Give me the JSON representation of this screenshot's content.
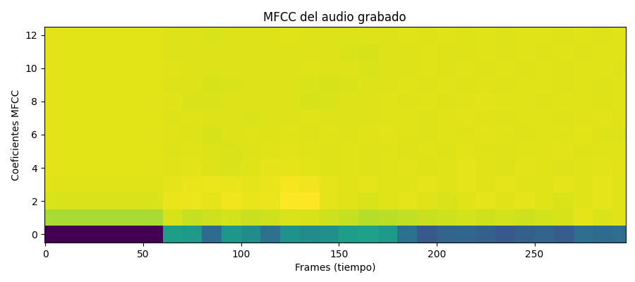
{
  "chart_data": {
    "type": "heatmap",
    "title": "MFCC del audio grabado",
    "x_label": "Frames (tiempo)",
    "y_label": "Coeficientes MFCC",
    "x_edges": [
      -0.5,
      10,
      20,
      30,
      40,
      50,
      60,
      70,
      80,
      90,
      100,
      110,
      120,
      130,
      140,
      150,
      160,
      170,
      180,
      190,
      200,
      210,
      220,
      230,
      240,
      250,
      260,
      270,
      280,
      290,
      296.5
    ],
    "y": [
      0,
      1,
      2,
      3,
      4,
      5,
      6,
      7,
      8,
      9,
      10,
      11,
      12
    ],
    "cells": [
      [
        -650,
        -650,
        -650,
        -650,
        -650,
        -650,
        -250,
        -260,
        -400,
        -270,
        -300,
        -380,
        -280,
        -300,
        -290,
        -250,
        -240,
        -260,
        -380,
        -450,
        -420,
        -410,
        -430,
        -450,
        -430,
        -420,
        -440,
        -390,
        -400,
        -390
      ],
      [
        -20,
        -20,
        -20,
        -20,
        -20,
        -20,
        30,
        10,
        20,
        25,
        15,
        20,
        35,
        30,
        20,
        10,
        -5,
        0,
        5,
        15,
        20,
        25,
        20,
        25,
        20,
        25,
        30,
        45,
        35,
        40
      ],
      [
        35,
        35,
        35,
        35,
        35,
        35,
        50,
        55,
        45,
        60,
        50,
        55,
        70,
        75,
        45,
        40,
        35,
        40,
        45,
        40,
        35,
        40,
        45,
        40,
        45,
        40,
        35,
        40,
        45,
        40
      ],
      [
        40,
        40,
        40,
        40,
        40,
        40,
        45,
        50,
        55,
        50,
        45,
        50,
        65,
        60,
        45,
        40,
        45,
        40,
        40,
        45,
        40,
        45,
        40,
        45,
        40,
        40,
        45,
        40,
        45,
        40
      ],
      [
        42,
        42,
        42,
        42,
        42,
        42,
        40,
        42,
        38,
        35,
        40,
        44,
        45,
        42,
        38,
        40,
        36,
        40,
        42,
        38,
        40,
        44,
        40,
        38,
        42,
        40,
        38,
        40,
        42,
        40
      ],
      [
        42,
        42,
        42,
        42,
        42,
        42,
        38,
        40,
        36,
        34,
        38,
        40,
        42,
        40,
        38,
        40,
        38,
        40,
        36,
        40,
        38,
        42,
        40,
        38,
        40,
        40,
        42,
        38,
        40,
        40
      ],
      [
        42,
        42,
        42,
        42,
        42,
        42,
        40,
        38,
        30,
        36,
        40,
        38,
        40,
        36,
        40,
        38,
        40,
        42,
        40,
        38,
        40,
        40,
        42,
        40,
        38,
        40,
        40,
        42,
        38,
        36
      ],
      [
        42,
        42,
        42,
        42,
        42,
        42,
        38,
        40,
        36,
        38,
        34,
        36,
        38,
        40,
        38,
        36,
        38,
        40,
        40,
        38,
        40,
        42,
        40,
        38,
        40,
        40,
        38,
        40,
        42,
        40
      ],
      [
        42,
        42,
        42,
        42,
        42,
        42,
        40,
        35,
        34,
        36,
        38,
        36,
        38,
        32,
        34,
        36,
        38,
        40,
        38,
        40,
        38,
        40,
        42,
        40,
        40,
        38,
        40,
        40,
        38,
        40
      ],
      [
        42,
        42,
        42,
        42,
        42,
        42,
        38,
        36,
        32,
        34,
        36,
        38,
        36,
        34,
        32,
        34,
        36,
        38,
        40,
        38,
        40,
        38,
        40,
        38,
        40,
        40,
        38,
        40,
        38,
        40
      ],
      [
        42,
        42,
        42,
        42,
        42,
        42,
        40,
        36,
        38,
        36,
        38,
        36,
        38,
        40,
        38,
        36,
        34,
        36,
        38,
        40,
        38,
        40,
        38,
        40,
        38,
        40,
        38,
        40,
        40,
        38
      ],
      [
        42,
        42,
        42,
        42,
        42,
        42,
        38,
        38,
        36,
        38,
        36,
        38,
        36,
        36,
        38,
        34,
        32,
        36,
        38,
        40,
        38,
        38,
        40,
        38,
        40,
        38,
        40,
        38,
        40,
        40
      ],
      [
        42,
        42,
        42,
        42,
        42,
        42,
        36,
        38,
        34,
        36,
        38,
        38,
        40,
        38,
        36,
        38,
        36,
        38,
        40,
        38,
        40,
        38,
        40,
        38,
        40,
        40,
        38,
        40,
        38,
        40
      ]
    ],
    "xlim": [
      -0.5,
      296.5
    ],
    "ylim": [
      -0.5,
      12.5
    ],
    "xticks": [
      0,
      50,
      100,
      150,
      200,
      250
    ],
    "yticks": [
      0,
      2,
      4,
      6,
      8,
      10,
      12
    ]
  }
}
